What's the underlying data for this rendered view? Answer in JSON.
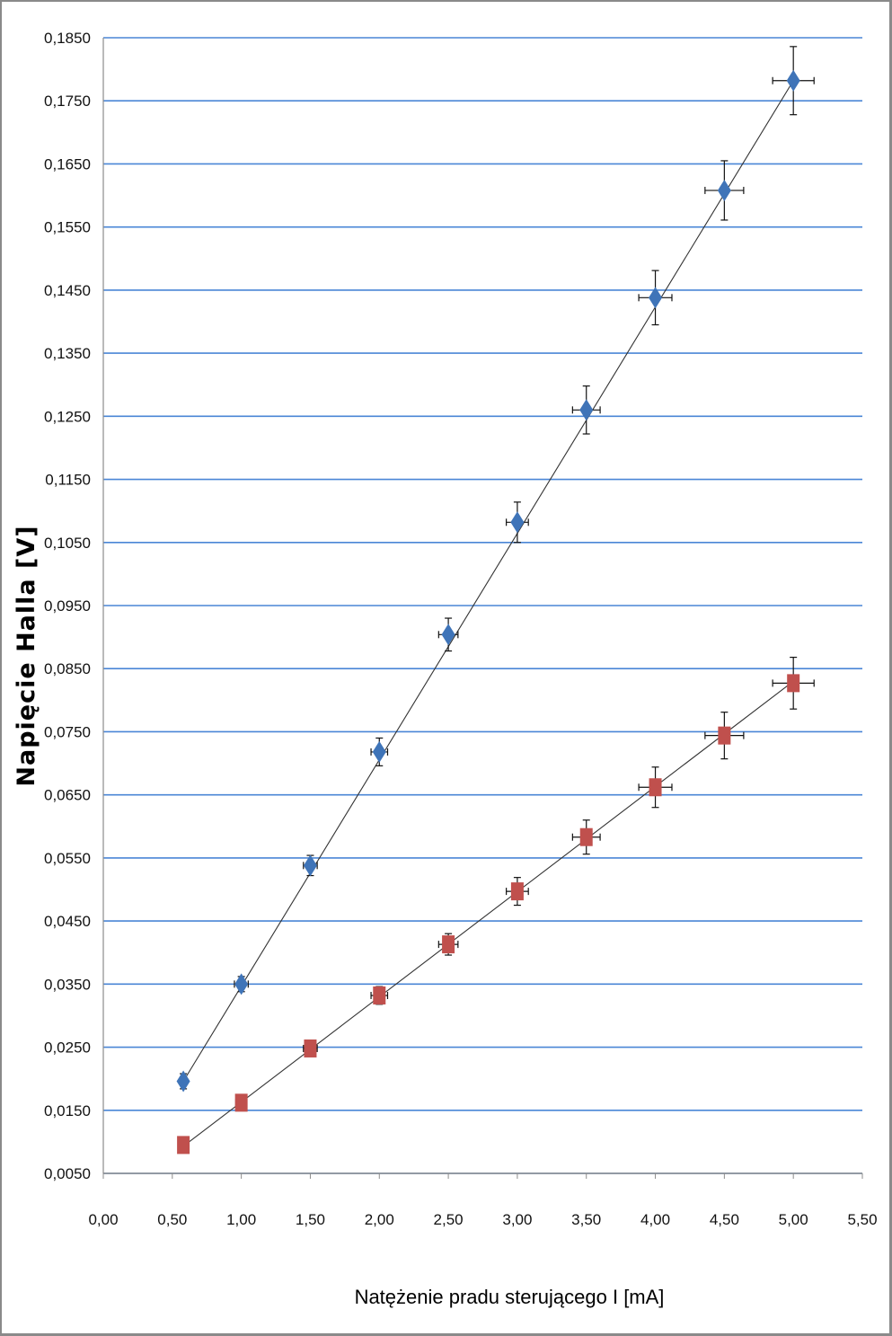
{
  "chart_data": {
    "type": "scatter",
    "xlabel": "Natężenie pradu sterującego I [mA]",
    "ylabel": "Napięcie Halla [V]",
    "xlim": [
      0,
      5.5
    ],
    "ylim": [
      0.005,
      0.185
    ],
    "x_ticks": [
      "0,00",
      "0,50",
      "1,00",
      "1,50",
      "2,00",
      "2,50",
      "3,00",
      "3,50",
      "4,00",
      "4,50",
      "5,00",
      "5,50"
    ],
    "y_ticks": [
      "0,0050",
      "0,0150",
      "0,0250",
      "0,0350",
      "0,0450",
      "0,0550",
      "0,0650",
      "0,0750",
      "0,0850",
      "0,0950",
      "0,1050",
      "0,1150",
      "0,1250",
      "0,1350",
      "0,1450",
      "0,1550",
      "0,1650",
      "0,1750",
      "0,1850"
    ],
    "grid": "horizontal",
    "legend": "none",
    "series": [
      {
        "marker": "diamond",
        "color": "#3f74b8",
        "x": [
          0.58,
          1.0,
          1.5,
          2.0,
          2.5,
          3.0,
          3.5,
          4.0,
          4.5,
          5.0
        ],
        "y": [
          0.0196,
          0.035,
          0.0538,
          0.0718,
          0.0904,
          0.1082,
          0.126,
          0.1438,
          0.1608,
          0.1782
        ],
        "y_err": [
          0.0012,
          0.0012,
          0.0016,
          0.0022,
          0.0026,
          0.0032,
          0.0038,
          0.0043,
          0.0047,
          0.0054
        ],
        "x_err": [
          0.0,
          0.05,
          0.05,
          0.06,
          0.07,
          0.08,
          0.1,
          0.12,
          0.14,
          0.15
        ],
        "trendline": [
          [
            0.58,
            0.0196
          ],
          [
            5.0,
            0.1782
          ]
        ]
      },
      {
        "marker": "square",
        "color": "#c0504d",
        "x": [
          0.58,
          1.0,
          1.5,
          2.0,
          2.5,
          3.0,
          3.5,
          4.0,
          4.5,
          5.0
        ],
        "y": [
          0.0095,
          0.0162,
          0.0248,
          0.0332,
          0.0413,
          0.0497,
          0.0583,
          0.0662,
          0.0744,
          0.0827
        ],
        "y_err": [
          0.0007,
          0.0007,
          0.0011,
          0.0014,
          0.0017,
          0.0022,
          0.0027,
          0.0032,
          0.0037,
          0.0041
        ],
        "x_err": [
          0.0,
          0.04,
          0.05,
          0.06,
          0.07,
          0.08,
          0.1,
          0.12,
          0.14,
          0.15
        ],
        "trendline": [
          [
            0.58,
            0.0093
          ],
          [
            5.0,
            0.083
          ]
        ]
      }
    ]
  }
}
